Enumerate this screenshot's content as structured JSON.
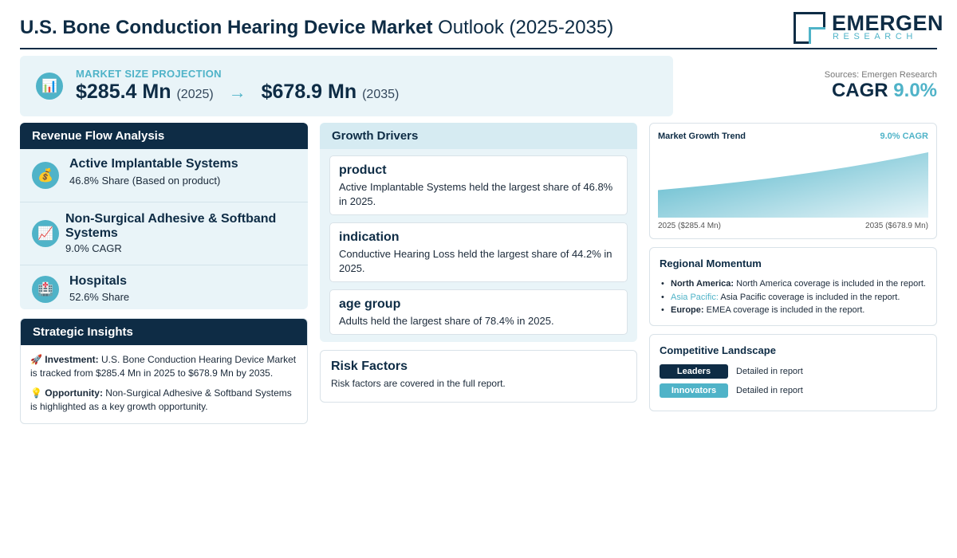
{
  "header": {
    "title_bold": "U.S. Bone Conduction Hearing Device Market",
    "title_light": "Outlook (2025-2035)",
    "logo_name": "EMERGEN",
    "logo_sub": "RESEARCH"
  },
  "projection": {
    "icon": "bar-chart-icon",
    "label": "MARKET SIZE PROJECTION",
    "start_value": "$285.4 Mn",
    "start_year": "(2025)",
    "arrow": "→",
    "end_value": "$678.9 Mn",
    "end_year": "(2035)"
  },
  "sources": "Sources: Emergen Research",
  "cagr": {
    "label": "CAGR",
    "value": "9.0%"
  },
  "revenue_flow": {
    "title": "Revenue Flow Analysis",
    "items": [
      {
        "icon": "money-bag-icon",
        "title": "Active Implantable Systems",
        "subtitle": "46.8% Share (Based on product)"
      },
      {
        "icon": "trend-chart-icon",
        "title": "Non-Surgical Adhesive & Softband Systems",
        "subtitle": "9.0% CAGR"
      },
      {
        "icon": "hospital-icon",
        "title": "Hospitals",
        "subtitle": "52.6% Share"
      }
    ]
  },
  "insights": {
    "title": "Strategic Insights",
    "investment_label": "Investment:",
    "investment_text": "U.S. Bone Conduction Hearing Device Market is tracked from $285.4 Mn in 2025 to $678.9 Mn by 2035.",
    "opportunity_label": "Opportunity:",
    "opportunity_text": "Non-Surgical Adhesive & Softband Systems is highlighted as a key growth opportunity."
  },
  "growth_drivers": {
    "title": "Growth Drivers",
    "cards": [
      {
        "title": "product",
        "text": "Active Implantable Systems held the largest share of 46.8% in 2025."
      },
      {
        "title": "indication",
        "text": "Conductive Hearing Loss held the largest share of 44.2% in 2025."
      },
      {
        "title": "age group",
        "text": "Adults held the largest share of 78.4% in 2025."
      }
    ]
  },
  "risk": {
    "title": "Risk Factors",
    "text": "Risk factors are covered in the full report."
  },
  "trend": {
    "title": "Market Growth Trend",
    "cagr_label": "9.0% CAGR",
    "start_label": "2025 ($285.4 Mn)",
    "end_label": "2035 ($678.9 Mn)"
  },
  "chart_data": {
    "type": "area",
    "x": [
      2025,
      2035
    ],
    "values": [
      285.4,
      678.9
    ],
    "title": "Market Growth Trend"
  },
  "regional": {
    "title": "Regional Momentum",
    "items": [
      {
        "region": "North America:",
        "text": "North America coverage is included in the report."
      },
      {
        "region": "Asia Pacific:",
        "text": "Asia Pacific coverage is included in the report."
      },
      {
        "region": "Europe:",
        "text": "EMEA coverage is included in the report."
      }
    ]
  },
  "competitive": {
    "title": "Competitive Landscape",
    "rows": [
      {
        "badge": "Leaders",
        "text": "Detailed in report"
      },
      {
        "badge": "Innovators",
        "text": "Detailed in report"
      }
    ]
  },
  "colors": {
    "navy": "#0e2c45",
    "accent": "#4fb3c8",
    "panel_bg": "#e9f4f8"
  }
}
